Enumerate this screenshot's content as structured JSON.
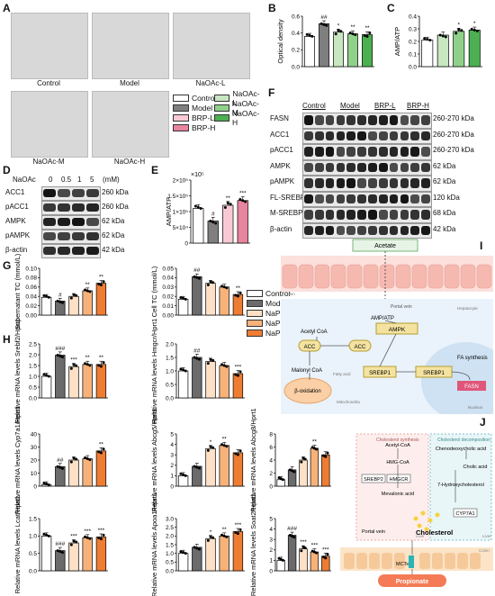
{
  "panels": {
    "A": {
      "letter": "A",
      "images": [
        {
          "label": "Control"
        },
        {
          "label": "Model"
        },
        {
          "label": "NaOAc-L"
        },
        {
          "label": "NaOAc-M"
        },
        {
          "label": "NaOAc-H"
        }
      ],
      "legend": [
        {
          "label": "Control",
          "color": "#ffffff"
        },
        {
          "label": "NaOAc-L",
          "color": "#c8e6c0"
        },
        {
          "label": "Model",
          "color": "#7f7f7f"
        },
        {
          "label": "NaOAc-M",
          "color": "#8fd18a"
        },
        {
          "label": "BRP-L",
          "color": "#f8c9d4"
        },
        {
          "label": "NaOAc-H",
          "color": "#4caf50"
        },
        {
          "label": "BRP-H",
          "color": "#e8849e"
        }
      ]
    },
    "B": {
      "letter": "B",
      "ylabel": "Optical density"
    },
    "C": {
      "letter": "C",
      "ylabel": "AMP/ATP"
    },
    "D": {
      "letter": "D",
      "header_label": "NaOAc",
      "doses": [
        "0",
        "0.5",
        "1",
        "5"
      ],
      "unit": "(mM)",
      "bands": [
        {
          "name": "ACC1",
          "kda": "260 kDa"
        },
        {
          "name": "pACC1",
          "kda": "260 kDa"
        },
        {
          "name": "AMPK",
          "kda": "62 kDa"
        },
        {
          "name": "pAMPK",
          "kda": "62 kDa"
        },
        {
          "name": "β-actin",
          "kda": "42 kDa"
        }
      ]
    },
    "E": {
      "letter": "E",
      "ylabel": "AMP/ATP",
      "scale": "×10⁵"
    },
    "F": {
      "letter": "F",
      "groups": [
        "Control",
        "Model",
        "BRP-L",
        "BRP-H"
      ],
      "bands": [
        {
          "name": "FASN",
          "kda": "260-270 kDa"
        },
        {
          "name": "ACC1",
          "kda": "260-270 kDa"
        },
        {
          "name": "pACC1",
          "kda": "260-270 kDa"
        },
        {
          "name": "AMPK",
          "kda": "62 kDa"
        },
        {
          "name": "pAMPK",
          "kda": "62 kDa"
        },
        {
          "name": "FL-SREBP1",
          "kda": "120 kDa"
        },
        {
          "name": "M-SREBP1",
          "kda": "68 kDa"
        },
        {
          "name": "β-actin",
          "kda": "42 kDa"
        }
      ]
    },
    "G": {
      "letter": "G",
      "left_ylabel": "Supernatant TC (mmol/L)",
      "right_ylabel": "Cell TC (mmol/L)"
    },
    "H": {
      "letter": "H",
      "legend": [
        {
          "label": "Control",
          "color": "#ffffff"
        },
        {
          "label": "Model",
          "color": "#6b6b6b"
        },
        {
          "label": "NaP-L",
          "color": "#fde0c5"
        },
        {
          "label": "NaP-M",
          "color": "#f7b27a"
        },
        {
          "label": "NaP-H",
          "color": "#ee7d33"
        }
      ]
    },
    "I": {
      "letter": "I",
      "acetate": "Acetate",
      "colon": "Colon",
      "portal_vein": "Portal vein",
      "hepatocyte": "Hepatocyte",
      "amp_atp": "AMP/ATP",
      "ampk": "AMPK",
      "acetyl_coa": "Acetyl CoA",
      "acc": "ACC",
      "acc_p": "ACC",
      "malonyl_coa": "Malonyl CoA",
      "fatty_acid": "Fatty acid",
      "beta_ox": "β-oxidation",
      "mito": "Mitochondria",
      "srebp1_a": "SREBP1",
      "srebp1_b": "SREBP1",
      "fa_synth": "FA synthesis",
      "fasn": "FASN",
      "nucleus": "Nucleus"
    },
    "J": {
      "letter": "J",
      "synth_title": "Cholesterol synthesis",
      "decomp_title": "Cholesterol decomposition",
      "acetyl_coa": "Acetyl-CoA",
      "hmg_coa": "HMG-CoA",
      "hmgcr": "HMGCR",
      "srebp2": "SREBP2",
      "mevalonic": "Mevalonic acid",
      "cheno": "Chenodeoxycholic acid",
      "cholic": "Cholic acid",
      "hydroxy": "7-Hydroxycholesterol",
      "cyp7a1": "CYP7A1",
      "liver1": "Liver",
      "liver2": "Liver",
      "portal_vein": "Portal vein",
      "cholesterol": "Cholesterol",
      "colon": "Colon",
      "mcts": "MCTs",
      "propionate": "Propionate"
    }
  },
  "chart_data": [
    {
      "id": "B",
      "type": "bar",
      "ylabel": "Optical density",
      "ylim": [
        0.0,
        0.6
      ],
      "yticks": [
        "0.0",
        "0.2",
        "0.4",
        "0.6"
      ],
      "categories": [
        "Control",
        "Model",
        "NaOAc-L",
        "NaOAc-M",
        "NaOAc-H"
      ],
      "values": [
        0.36,
        0.51,
        0.41,
        0.39,
        0.38
      ],
      "significance": [
        "",
        "##",
        "*",
        "**",
        "**"
      ]
    },
    {
      "id": "C",
      "type": "bar",
      "ylabel": "AMP/ATP",
      "ylim": [
        0.0,
        0.4
      ],
      "yticks": [
        "0.0",
        "0.1",
        "0.2",
        "0.3",
        "0.4"
      ],
      "categories": [
        "Control",
        "NaOAc-L",
        "NaOAc-M",
        "NaOAc-H"
      ],
      "values": [
        0.21,
        0.25,
        0.28,
        0.29
      ],
      "significance": [
        "",
        "",
        "*",
        "*"
      ]
    },
    {
      "id": "E",
      "type": "bar",
      "ylabel": "AMP/ATP",
      "ylim": [
        0,
        200000
      ],
      "yticks": [
        "0",
        "5×10⁴",
        "1×10⁵",
        "1.5×10⁵",
        "2×10⁵"
      ],
      "categories": [
        "Control",
        "Model",
        "BRP-L",
        "BRP-H"
      ],
      "values": [
        110000,
        70000,
        120000,
        135000
      ],
      "significance": [
        "",
        "#",
        "**",
        "***"
      ]
    },
    {
      "id": "G-supernatant",
      "type": "bar",
      "ylabel": "Supernatant TC (mmol/L)",
      "ylim": [
        0.0,
        0.1
      ],
      "yticks": [
        "0.00",
        "0.02",
        "0.04",
        "0.06",
        "0.08",
        "0.10"
      ],
      "categories": [
        "Control",
        "Model",
        "NaP-L",
        "NaP-M",
        "NaP-H"
      ],
      "values": [
        0.038,
        0.03,
        0.04,
        0.052,
        0.068
      ],
      "significance": [
        "",
        "#",
        "",
        "**",
        "**"
      ]
    },
    {
      "id": "G-cell",
      "type": "bar",
      "ylabel": "Cell TC (mmol/L)",
      "ylim": [
        0.0,
        0.05
      ],
      "yticks": [
        "0.00",
        "0.01",
        "0.02",
        "0.03",
        "0.04",
        "0.05"
      ],
      "categories": [
        "Control",
        "Model",
        "NaP-L",
        "NaP-M",
        "NaP-H"
      ],
      "values": [
        0.017,
        0.041,
        0.034,
        0.03,
        0.022
      ],
      "significance": [
        "",
        "##",
        "",
        "",
        "**"
      ]
    },
    {
      "id": "Srebf2",
      "type": "bar",
      "ylabel": "Relative mRNA levels Srebf2/Hprt1",
      "ylim": [
        0.0,
        2.5
      ],
      "yticks": [
        "0.0",
        "0.5",
        "1.0",
        "1.5",
        "2.0",
        "2.5"
      ],
      "categories": [
        "Control",
        "Model",
        "NaP-L",
        "NaP-M",
        "NaP-H"
      ],
      "values": [
        1.0,
        1.98,
        1.45,
        1.55,
        1.55
      ],
      "significance": [
        "",
        "###",
        "***",
        "**",
        "**"
      ]
    },
    {
      "id": "Hmgcr",
      "type": "bar",
      "ylabel": "Relative mRNA levels Hmgcr/Hprt1",
      "ylim": [
        0.0,
        2.0
      ],
      "yticks": [
        "0.0",
        "0.5",
        "1.0",
        "1.5",
        "2.0"
      ],
      "categories": [
        "Control",
        "Model",
        "NaP-L",
        "NaP-M",
        "NaP-H"
      ],
      "values": [
        1.0,
        1.5,
        1.35,
        1.2,
        0.9
      ],
      "significance": [
        "",
        "##",
        "",
        "",
        "***"
      ]
    },
    {
      "id": "Cyp7a1",
      "type": "bar",
      "ylabel": "Relative mRNA levels Cyp7a1/Hprt1",
      "ylim": [
        0,
        40
      ],
      "yticks": [
        "0",
        "10",
        "20",
        "30",
        "40"
      ],
      "categories": [
        "Control",
        "Model",
        "NaP-L",
        "NaP-M",
        "NaP-H"
      ],
      "values": [
        1,
        15,
        20,
        21,
        27
      ],
      "significance": [
        "",
        "##",
        "",
        "",
        "**"
      ]
    },
    {
      "id": "Abcg5",
      "type": "bar",
      "ylabel": "Relative mRNA levels Abcg5/Hprt1",
      "ylim": [
        0,
        5
      ],
      "yticks": [
        "0",
        "1",
        "2",
        "3",
        "4",
        "5"
      ],
      "categories": [
        "Control",
        "Model",
        "NaP-L",
        "NaP-M",
        "NaP-H"
      ],
      "values": [
        1.0,
        1.9,
        3.6,
        3.9,
        3.2
      ],
      "significance": [
        "",
        "",
        "*",
        "**",
        ""
      ]
    },
    {
      "id": "Abcg8",
      "type": "bar",
      "ylabel": "Relative mRNA levels Abcg8/Hprt1",
      "ylim": [
        0,
        8
      ],
      "yticks": [
        "0",
        "2",
        "4",
        "6",
        "8"
      ],
      "categories": [
        "Control",
        "Model",
        "NaP-L",
        "NaP-M",
        "NaP-H"
      ],
      "values": [
        1.0,
        2.5,
        4.0,
        5.8,
        4.8
      ],
      "significance": [
        "",
        "",
        "",
        "**",
        ""
      ]
    },
    {
      "id": "Lcat",
      "type": "bar",
      "ylabel": "Relative mRNA levels Lcat/Hprt1",
      "ylim": [
        0.0,
        1.5
      ],
      "yticks": [
        "0.0",
        "0.5",
        "1.0",
        "1.5"
      ],
      "categories": [
        "Control",
        "Model",
        "NaP-L",
        "NaP-M",
        "NaP-H"
      ],
      "values": [
        1.0,
        0.58,
        0.8,
        0.95,
        0.97
      ],
      "significance": [
        "",
        "###",
        "***",
        "***",
        "***"
      ]
    },
    {
      "id": "Apoa1",
      "type": "bar",
      "ylabel": "Relative mRNA levels Apoa1/Hprt1",
      "ylim": [
        0.0,
        3.0
      ],
      "yticks": [
        "0.0",
        "0.5",
        "1.0",
        "1.5",
        "2.0",
        "2.5",
        "3.0"
      ],
      "categories": [
        "Control",
        "Model",
        "NaP-L",
        "NaP-M",
        "NaP-H"
      ],
      "values": [
        1.0,
        1.35,
        1.85,
        2.0,
        2.25
      ],
      "significance": [
        "",
        "",
        "*",
        "**",
        "***"
      ]
    },
    {
      "id": "Soat2",
      "type": "bar",
      "ylabel": "Relative mRNA levels Soat2/Hprt1",
      "ylim": [
        0,
        5
      ],
      "yticks": [
        "0",
        "1",
        "2",
        "3",
        "4",
        "5"
      ],
      "categories": [
        "Control",
        "Model",
        "NaP-L",
        "NaP-M",
        "NaP-H"
      ],
      "values": [
        1.0,
        3.4,
        2.1,
        1.8,
        1.4
      ],
      "significance": [
        "",
        "###",
        "***",
        "***",
        "***"
      ]
    }
  ]
}
